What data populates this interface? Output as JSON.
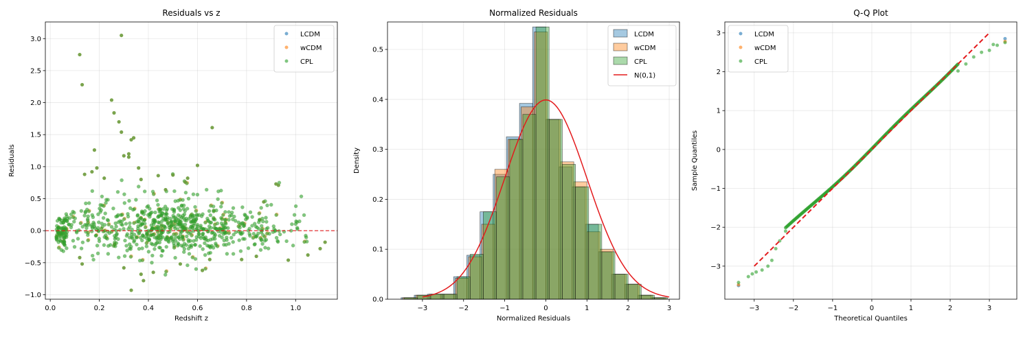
{
  "colors": {
    "LCDM": "#1f77b4",
    "wCDM": "#ff7f0e",
    "CPL": "#2ca02c",
    "ref": "#e31a1c"
  },
  "chart_data": [
    {
      "type": "scatter",
      "title": "Residuals vs z",
      "xlabel": "Redshift z",
      "ylabel": "Residuals",
      "xlim": [
        -0.02,
        1.17
      ],
      "ylim": [
        -1.07,
        3.26
      ],
      "xticks": [
        0.0,
        0.2,
        0.4,
        0.6,
        0.8,
        1.0
      ],
      "xticklabels": [
        "0.0",
        "0.2",
        "0.4",
        "0.6",
        "0.8",
        "1.0"
      ],
      "yticks": [
        -1.0,
        -0.5,
        0.0,
        0.5,
        1.0,
        1.5,
        2.0,
        2.5,
        3.0
      ],
      "yticklabels": [
        "−1.0",
        "−0.5",
        "0.0",
        "0.5",
        "1.0",
        "1.5",
        "2.0",
        "2.5",
        "3.0"
      ],
      "grid": true,
      "legend": {
        "placement": "upper-right",
        "entries": [
          "LCDM",
          "wCDM",
          "CPL"
        ]
      },
      "reference_line": {
        "y": 0.0,
        "style": "dashed"
      },
      "series": [
        {
          "name": "LCDM"
        },
        {
          "name": "wCDM"
        },
        {
          "name": "CPL",
          "points": [
            [
              0.29,
              3.05
            ],
            [
              0.12,
              2.75
            ],
            [
              0.13,
              2.28
            ],
            [
              0.25,
              2.04
            ],
            [
              0.26,
              1.84
            ],
            [
              0.28,
              1.7
            ],
            [
              0.29,
              1.54
            ],
            [
              0.33,
              1.42
            ],
            [
              0.34,
              1.45
            ],
            [
              0.18,
              1.26
            ],
            [
              0.32,
              1.15
            ],
            [
              0.3,
              1.17
            ],
            [
              0.32,
              1.2
            ],
            [
              0.36,
              0.98
            ],
            [
              0.37,
              0.8
            ],
            [
              0.19,
              0.98
            ],
            [
              0.17,
              0.92
            ],
            [
              0.14,
              0.88
            ],
            [
              0.22,
              0.82
            ],
            [
              0.66,
              1.61
            ],
            [
              0.6,
              1.02
            ],
            [
              0.5,
              0.87
            ],
            [
              0.56,
              0.82
            ],
            [
              0.55,
              0.76
            ],
            [
              0.44,
              0.86
            ],
            [
              0.47,
              0.64
            ],
            [
              0.92,
              0.73
            ],
            [
              0.87,
              0.45
            ],
            [
              0.93,
              0.71
            ],
            [
              0.38,
              -0.78
            ],
            [
              0.33,
              -0.93
            ],
            [
              0.3,
              -0.58
            ],
            [
              0.37,
              -0.68
            ],
            [
              0.13,
              -0.52
            ],
            [
              0.12,
              -0.42
            ],
            [
              0.42,
              -0.65
            ],
            [
              0.65,
              -0.45
            ],
            [
              0.53,
              -0.52
            ],
            [
              1.12,
              -0.18
            ],
            [
              1.1,
              -0.28
            ],
            [
              1.05,
              -0.38
            ],
            [
              0.78,
              -0.45
            ],
            [
              0.84,
              -0.4
            ],
            [
              0.97,
              -0.46
            ],
            [
              0.62,
              -0.62
            ]
          ]
        }
      ]
    },
    {
      "type": "histogram",
      "title": "Normalized Residuals",
      "xlabel": "Normalized Residuals",
      "ylabel": "Density",
      "xlim": [
        -3.85,
        3.25
      ],
      "ylim": [
        0.0,
        0.555
      ],
      "xticks": [
        -3,
        -2,
        -1,
        0,
        1,
        2,
        3
      ],
      "xticklabels": [
        "−3",
        "−2",
        "−1",
        "0",
        "1",
        "2",
        "3"
      ],
      "yticks": [
        0.0,
        0.1,
        0.2,
        0.3,
        0.4,
        0.5
      ],
      "yticklabels": [
        "0.0",
        "0.1",
        "0.2",
        "0.3",
        "0.4",
        "0.5"
      ],
      "grid": true,
      "legend": {
        "placement": "upper-right",
        "entries": [
          "LCDM",
          "wCDM",
          "CPL",
          "N(0,1)"
        ]
      },
      "bin_edges": [
        -3.52,
        -3.2,
        -2.88,
        -2.56,
        -2.24,
        -1.92,
        -1.6,
        -1.28,
        -0.96,
        -0.64,
        -0.32,
        0.0,
        0.32,
        0.64,
        0.96,
        1.28,
        1.6,
        1.92,
        2.24,
        2.56,
        2.88
      ],
      "series": [
        {
          "name": "LCDM",
          "values": [
            0.003,
            0.008,
            0.01,
            0.01,
            0.045,
            0.088,
            0.175,
            0.25,
            0.325,
            0.392,
            0.545,
            0.36,
            0.265,
            0.225,
            0.15,
            0.095,
            0.05,
            0.03,
            0.008,
            0.003
          ]
        },
        {
          "name": "wCDM",
          "values": [
            0.003,
            0.008,
            0.01,
            0.01,
            0.042,
            0.085,
            0.15,
            0.26,
            0.32,
            0.385,
            0.535,
            0.36,
            0.275,
            0.235,
            0.135,
            0.1,
            0.05,
            0.03,
            0.008,
            0.003
          ]
        },
        {
          "name": "CPL",
          "values": [
            0.003,
            0.008,
            0.01,
            0.01,
            0.045,
            0.09,
            0.175,
            0.245,
            0.32,
            0.37,
            0.545,
            0.36,
            0.27,
            0.225,
            0.15,
            0.095,
            0.05,
            0.03,
            0.008,
            0.003
          ]
        }
      ],
      "reference_curve": {
        "name": "N(0,1)",
        "x_range": [
          -3,
          3
        ],
        "mean": 0,
        "std": 1
      }
    },
    {
      "type": "scatter",
      "title": "Q-Q Plot",
      "xlabel": "Theoretical Quantiles",
      "ylabel": "Sample Quantiles",
      "xlim": [
        -3.75,
        3.7
      ],
      "ylim": [
        -3.85,
        3.28
      ],
      "xticks": [
        -3,
        -2,
        -1,
        0,
        1,
        2,
        3
      ],
      "xticklabels": [
        "−3",
        "−2",
        "−1",
        "0",
        "1",
        "2",
        "3"
      ],
      "yticks": [
        -3,
        -2,
        -1,
        0,
        1,
        2,
        3
      ],
      "yticklabels": [
        "−3",
        "−2",
        "−1",
        "0",
        "1",
        "2",
        "3"
      ],
      "grid": true,
      "legend": {
        "placement": "upper-left",
        "entries": [
          "LCDM",
          "wCDM",
          "CPL"
        ]
      },
      "reference_line": {
        "from": [
          -3,
          -3
        ],
        "to": [
          3,
          3
        ],
        "style": "dashed"
      },
      "series": [
        {
          "name": "LCDM",
          "points": [
            [
              -3.4,
              -3.5
            ],
            [
              3.4,
              2.85
            ]
          ]
        },
        {
          "name": "wCDM",
          "points": [
            [
              -3.4,
              -3.48
            ],
            [
              3.4,
              2.78
            ]
          ]
        },
        {
          "name": "CPL",
          "points": [
            [
              -3.4,
              -3.42
            ],
            [
              -3.15,
              -3.27
            ],
            [
              -3.05,
              -3.2
            ],
            [
              -2.95,
              -3.15
            ],
            [
              -2.8,
              -3.1
            ],
            [
              -2.65,
              -3.0
            ],
            [
              -2.55,
              -2.85
            ],
            [
              -2.45,
              -2.55
            ],
            [
              -2.35,
              -2.35
            ],
            [
              -2.2,
              -2.1
            ],
            [
              2.2,
              2.02
            ],
            [
              2.4,
              2.2
            ],
            [
              2.6,
              2.38
            ],
            [
              2.8,
              2.5
            ],
            [
              3.0,
              2.55
            ],
            [
              3.1,
              2.7
            ],
            [
              3.2,
              2.68
            ],
            [
              3.4,
              2.75
            ]
          ]
        }
      ]
    }
  ]
}
